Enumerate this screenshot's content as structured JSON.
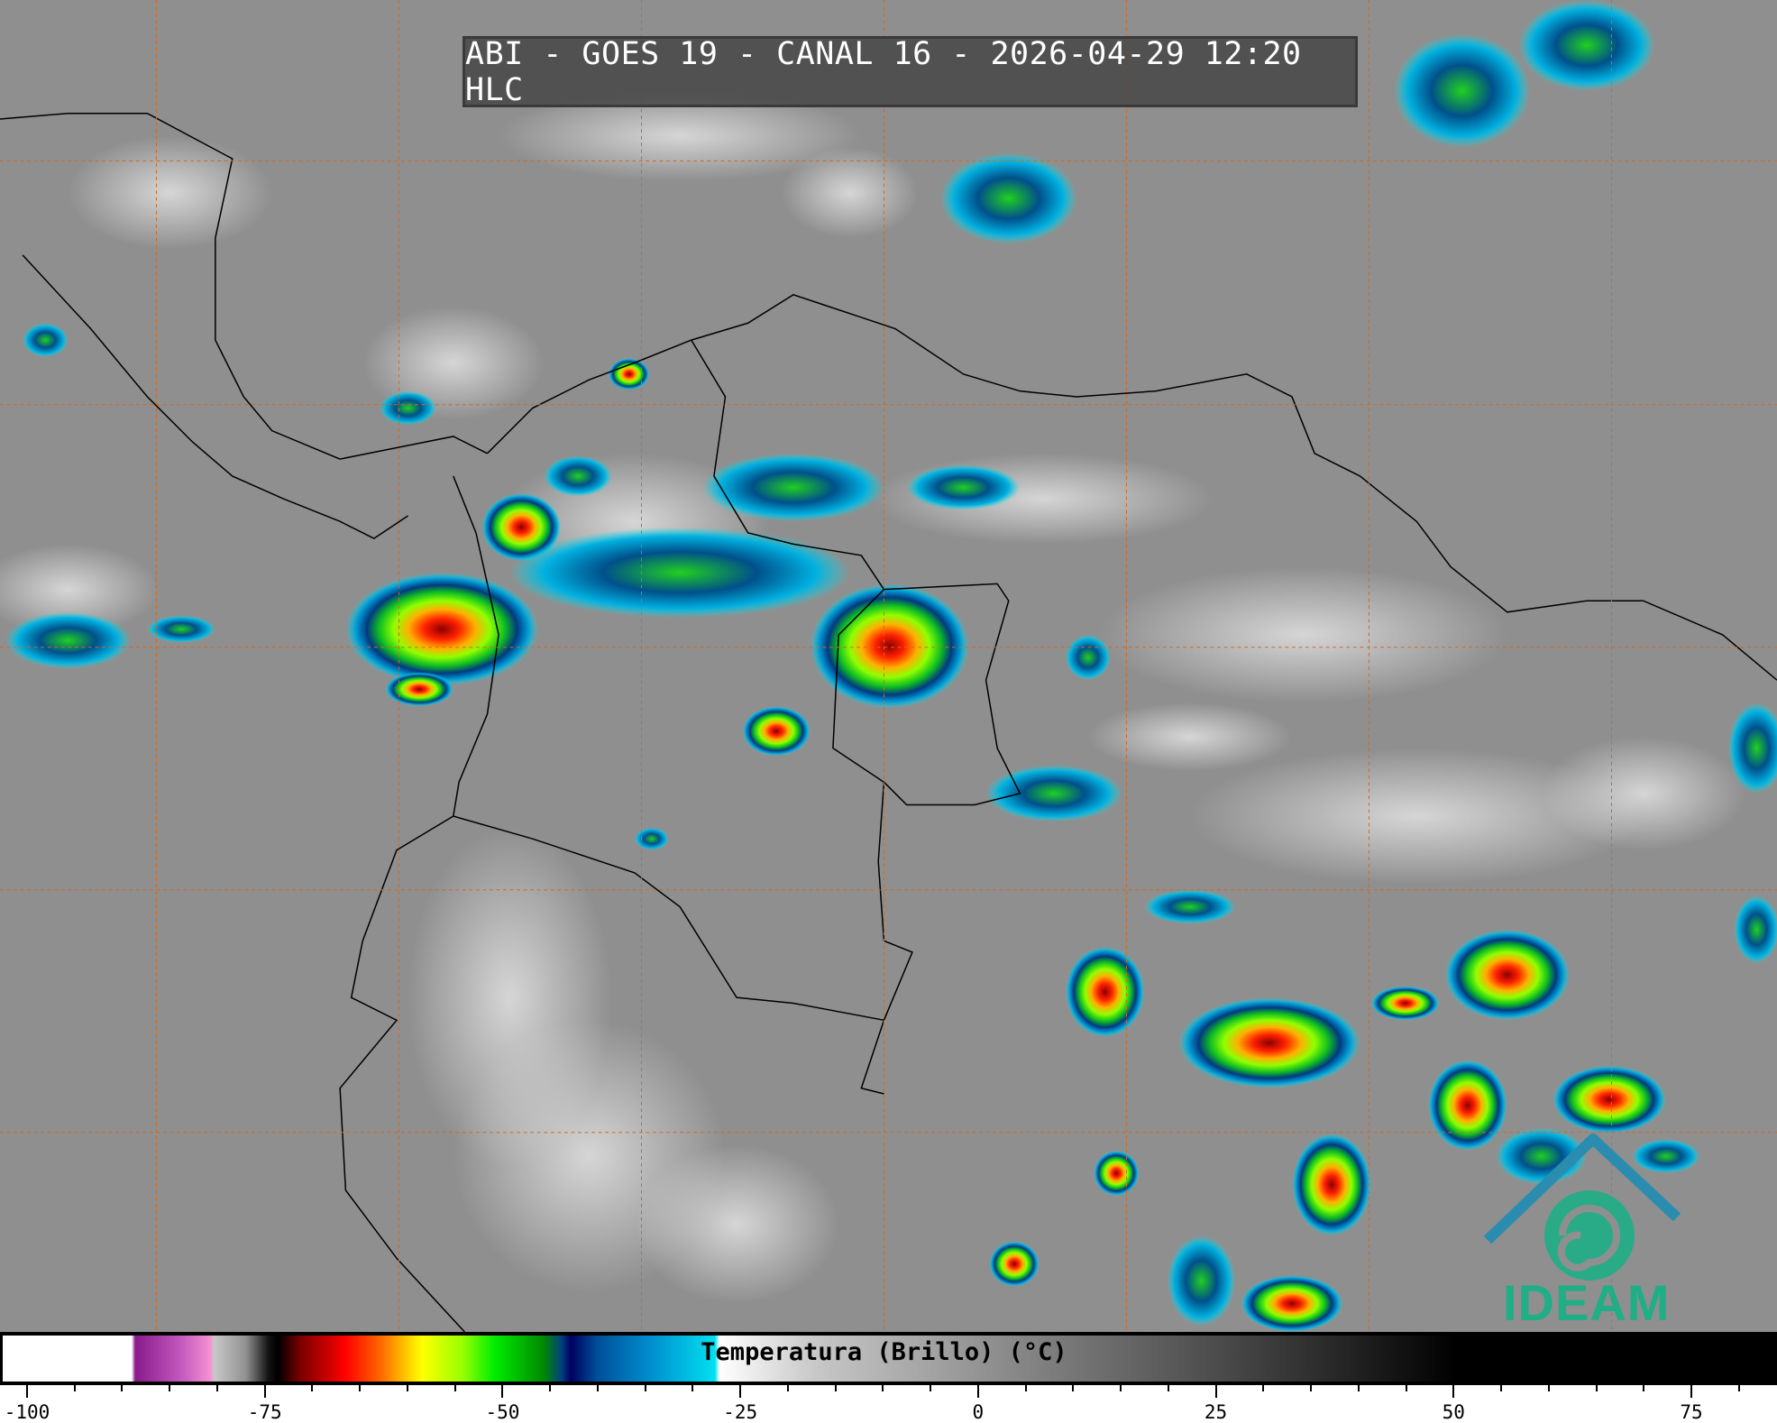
{
  "title": "ABI - GOES 19 - CANAL 16 - 2026-04-29 12:20 HLC",
  "colorbar": {
    "label": "Temperatura (Brillo) (°C)",
    "range": [
      -100,
      85
    ],
    "major_ticks": [
      "-100",
      "-75",
      "-50",
      "-25",
      "0",
      "25",
      "50",
      "75"
    ],
    "minor_tick_step": 5
  },
  "logo": {
    "text": "IDEAM",
    "color": "#1fae86"
  },
  "colors": {
    "grid": "#d2691e",
    "borders": "#000000"
  }
}
